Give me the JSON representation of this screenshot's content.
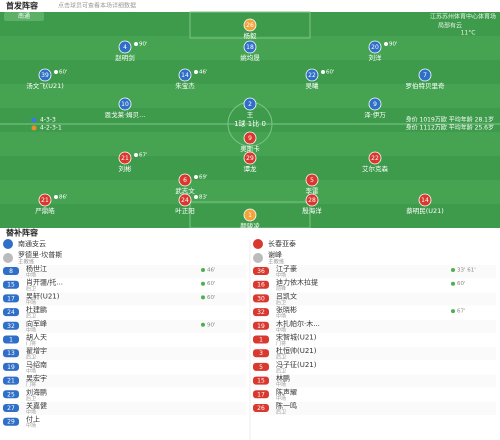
{
  "header": {
    "title": "首发阵容",
    "subtitle": "点击球员可查看本场详细数据"
  },
  "pitch": {
    "home_badge": "南通",
    "venue": "江苏苏州体育中心体育场",
    "weather": "局部有云",
    "temperature": "11°C",
    "home_formation": "4-3-3",
    "away_formation": "4-2-3-1",
    "score": "1球 1比 0",
    "home_stats": "身价 1019万欧   平均年龄 28.1岁",
    "away_stats": "身价 1112万欧   平均年龄 25.6岁",
    "home_players": [
      {
        "number": "26",
        "name": "杨毅"
      },
      {
        "number": "4",
        "name": "赵明剑",
        "event": "90'"
      },
      {
        "number": "18",
        "name": "姚均晟"
      },
      {
        "number": "20",
        "name": "刘洋",
        "event": "90'"
      },
      {
        "number": "39",
        "name": "汤文飞(U21)",
        "event": "60'"
      },
      {
        "number": "14",
        "name": "朱宝杰",
        "event": "46'"
      },
      {
        "number": "22",
        "name": "吴曦",
        "event": "60'"
      },
      {
        "number": "7",
        "name": "罗伯特贝里奇"
      },
      {
        "number": "10",
        "name": "恩戈莱·姆贝..."
      },
      {
        "number": "2",
        "name": "王"
      },
      {
        "number": "9",
        "name": "泽·伊万"
      }
    ],
    "away_players": [
      {
        "number": "9",
        "name": "奥斯卡"
      },
      {
        "number": "21",
        "name": "刘彬",
        "event": "67'"
      },
      {
        "number": "29",
        "name": "谭龙"
      },
      {
        "number": "22",
        "name": "艾尔克森"
      },
      {
        "number": "6",
        "name": "武志文",
        "event": "69'"
      },
      {
        "number": "5",
        "name": "李雷"
      },
      {
        "number": "21",
        "name": "严鼎皓",
        "event": "86'"
      },
      {
        "number": "24",
        "name": "叶正阳",
        "event": "83'"
      },
      {
        "number": "28",
        "name": "殷海洋"
      },
      {
        "number": "14",
        "name": "蔡明民(U21)"
      },
      {
        "number": "1",
        "name": "颜骏凌"
      }
    ]
  },
  "subs": {
    "title": "替补阵容",
    "home": {
      "team": "南通支云",
      "coach": "罗德里·坎普斯",
      "coach_role": "主教练",
      "players": [
        {
          "number": "8",
          "name": "杨世江",
          "position": "中场",
          "event": "46'"
        },
        {
          "number": "15",
          "name": "肖开疆/托...",
          "position": "后卫",
          "event": "60'"
        },
        {
          "number": "17",
          "name": "吴轩(U21)",
          "position": "中场",
          "event": "60'"
        },
        {
          "number": "24",
          "name": "杜建鹏",
          "position": "后卫"
        },
        {
          "number": "32",
          "name": "向军峰",
          "position": "中场",
          "event": "90'"
        },
        {
          "number": "1",
          "name": "胡人天",
          "position": "门将"
        },
        {
          "number": "13",
          "name": "翟增宇",
          "position": "后卫"
        },
        {
          "number": "19",
          "name": "马绍南",
          "position": "中场"
        },
        {
          "number": "21",
          "name": "吴宏宇",
          "position": "门将"
        },
        {
          "number": "25",
          "name": "刘海鹏",
          "position": "后卫"
        },
        {
          "number": "27",
          "name": "关嘉健",
          "position": "中场"
        },
        {
          "number": "29",
          "name": "付上",
          "position": "中场"
        }
      ]
    },
    "away": {
      "team": "长春亚泰",
      "coach": "谢峰",
      "coach_role": "主教练",
      "players": [
        {
          "number": "36",
          "name": "江子豪",
          "position": "中场",
          "event": "33' 61'"
        },
        {
          "number": "16",
          "name": "迪力依木拉提",
          "position": "前锋",
          "event": "60'"
        },
        {
          "number": "30",
          "name": "吕凯文",
          "position": "后卫"
        },
        {
          "number": "32",
          "name": "张晓彬",
          "position": "中场",
          "event": "67'"
        },
        {
          "number": "19",
          "name": "木扎帕尔·木...",
          "position": "中场"
        },
        {
          "number": "1",
          "name": "宋智城(U21)",
          "position": "门将"
        },
        {
          "number": "3",
          "name": "杜恒帅(U21)",
          "position": "后卫"
        },
        {
          "number": "5",
          "name": "冯子征(U21)",
          "position": "后卫"
        },
        {
          "number": "15",
          "name": "林鹏",
          "position": "中场"
        },
        {
          "number": "17",
          "name": "陈声耀",
          "position": "中场"
        },
        {
          "number": "26",
          "name": "陈一鸣",
          "position": "后卫"
        }
      ]
    }
  }
}
